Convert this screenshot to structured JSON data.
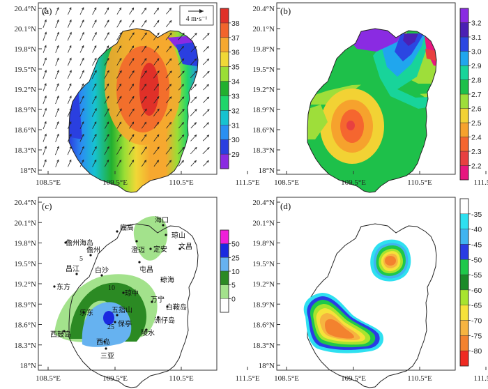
{
  "chart_data": [
    {
      "panel_label": "(a)",
      "type": "heatmap",
      "title": "",
      "xlabel": "",
      "ylabel": "",
      "x_ticks": [
        "108.5°E",
        "109.5°E",
        "110.5°E",
        "111.5°E"
      ],
      "y_ticks": [
        "18°N",
        "18.3°N",
        "18.6°N",
        "18.9°N",
        "19.2°N",
        "19.5°N",
        "19.8°N",
        "20.1°N",
        "20.4°N"
      ],
      "xlim": [
        108.2,
        111.5
      ],
      "ylim": [
        17.8,
        20.45
      ],
      "vector_reference": "4 m·s⁻¹",
      "colorbar": {
        "ticks": [
          "29",
          "30",
          "31",
          "32",
          "33",
          "34",
          "35",
          "36",
          "37",
          "38"
        ],
        "colors": [
          "#8a2be2",
          "#2a3fe0",
          "#2a8ff2",
          "#17c2d0",
          "#1ed66a",
          "#22b02e",
          "#9ade35",
          "#f0d836",
          "#f6a82f",
          "#f2642c",
          "#e03028"
        ]
      },
      "max_region": [
        110.05,
        19.3
      ]
    },
    {
      "panel_label": "(b)",
      "type": "heatmap",
      "x_ticks": [
        "108.5°E",
        "109.5°E",
        "110.5°E",
        "111.5°E"
      ],
      "y_ticks": [
        "18°N",
        "18.3°N",
        "18.6°N",
        "18.9°N",
        "19.2°N",
        "19.5°N",
        "19.8°N",
        "20.1°N",
        "20.4°N"
      ],
      "xlim": [
        108.2,
        111.5
      ],
      "ylim": [
        17.8,
        20.45
      ],
      "colorbar": {
        "ticks": [
          "2.2",
          "2.3",
          "2.4",
          "2.5",
          "2.6",
          "2.7",
          "2.8",
          "2.9",
          "3.0",
          "3.1",
          "3.2"
        ],
        "colors": [
          "#e8177f",
          "#e84040",
          "#f5662f",
          "#f6a22d",
          "#f2d234",
          "#9ede3a",
          "#1ec04a",
          "#18d49a",
          "#20a6ee",
          "#2b46e2",
          "#4b20b4",
          "#8a2be2"
        ]
      },
      "min_region": [
        109.45,
        18.6
      ]
    },
    {
      "panel_label": "(c)",
      "type": "heatmap",
      "x_ticks": [
        "108.5°E",
        "109.5°E",
        "110.5°E",
        "111.5°E"
      ],
      "y_ticks": [
        "18°N",
        "18.3°N",
        "18.6°N",
        "18.9°N",
        "19.2°N",
        "19.5°N",
        "19.8°N",
        "20.1°N",
        "20.4°N"
      ],
      "xlim": [
        108.2,
        111.5
      ],
      "ylim": [
        17.8,
        20.45
      ],
      "colorbar": {
        "ticks": [
          "0",
          "5",
          "10",
          "25",
          "50"
        ],
        "colors": [
          "#ffffff",
          "#a3e28c",
          "#2b8a23",
          "#66b2f0",
          "#1a2ae0",
          "#ef1fd9"
        ]
      },
      "contour_labels": [
        "5",
        "10",
        "25"
      ],
      "stations": [
        "海口",
        "琼山",
        "临高",
        "澄迈",
        "定安",
        "文昌",
        "儋州海岛",
        "儋州",
        "屯昌",
        "昌江",
        "白沙",
        "琼海",
        "东方",
        "琼中",
        "万宁",
        "乐东",
        "五指山",
        "保亭",
        "白鞍岛",
        "洲仔岛",
        "西鼓岛",
        "陵水",
        "西岛",
        "三亚"
      ]
    },
    {
      "panel_label": "(d)",
      "type": "heatmap",
      "x_ticks": [
        "108.5°E",
        "109.5°E",
        "110.5°E",
        "111.5°E"
      ],
      "y_ticks": [
        "18°N",
        "18.3°N",
        "18.6°N",
        "18.9°N",
        "19.2°N",
        "19.5°N",
        "19.8°N",
        "20.1°N",
        "20.4°N"
      ],
      "xlim": [
        108.2,
        111.5
      ],
      "ylim": [
        17.8,
        20.45
      ],
      "colorbar": {
        "ticks": [
          "-35",
          "-40",
          "-45",
          "-50",
          "-55",
          "-60",
          "-65",
          "-70",
          "-75",
          "-80"
        ],
        "colors": [
          "#ffffff",
          "#2ee0f0",
          "#40b4f0",
          "#2a3ce4",
          "#1ec84a",
          "#1a8a28",
          "#a7e42e",
          "#f6e23a",
          "#f6b440",
          "#f3822e",
          "#ef2a22"
        ]
      },
      "centers": [
        [
          110.0,
          19.5
        ],
        [
          109.25,
          18.55
        ]
      ]
    }
  ]
}
